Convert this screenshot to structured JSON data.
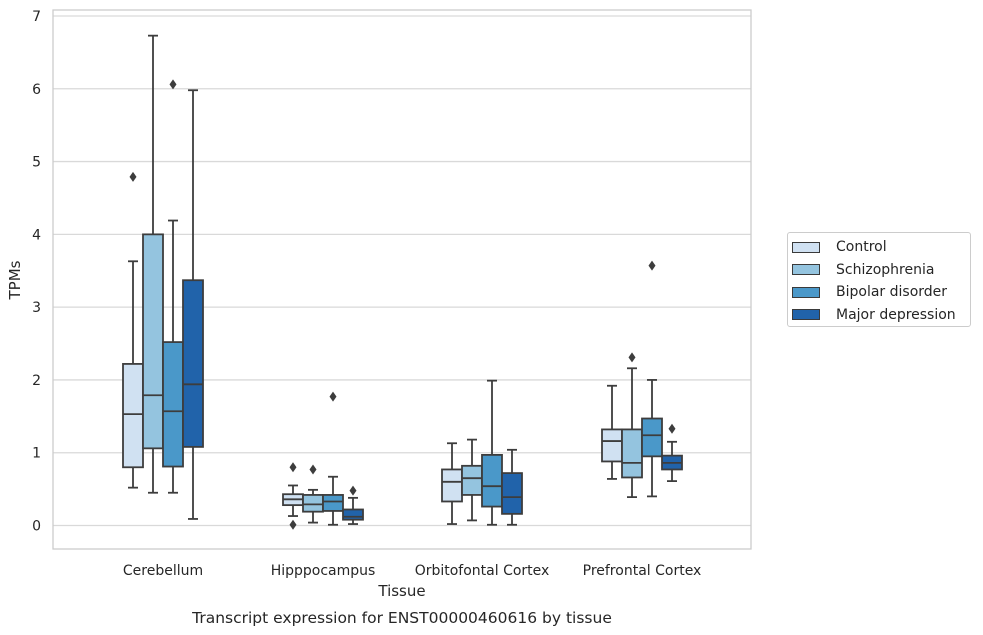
{
  "caption": "Transcript expression for ENST00000460616 by tissue",
  "chart_data": {
    "type": "box",
    "xlabel": "Tissue",
    "ylabel": "TPMs",
    "ylim": [
      -0.32,
      7.1
    ],
    "yticks": [
      "0",
      "1",
      "2",
      "3",
      "4",
      "5",
      "6",
      "7"
    ],
    "grid": true,
    "legend_position": "right",
    "categories": [
      "Cerebellum",
      "Hipppocampus",
      "Orbitofontal Cortex",
      "Prefrontal Cortex"
    ],
    "series": [
      {
        "name": "Control",
        "color": "#d0e1f2",
        "boxes": [
          {
            "whislo": 0.52,
            "q1": 0.8,
            "med": 1.53,
            "q3": 2.22,
            "whishi": 3.63,
            "fliers": [
              4.79
            ]
          },
          {
            "whislo": 0.13,
            "q1": 0.28,
            "med": 0.36,
            "q3": 0.43,
            "whishi": 0.55,
            "fliers": [
              0.8,
              0.01
            ]
          },
          {
            "whislo": 0.02,
            "q1": 0.33,
            "med": 0.6,
            "q3": 0.77,
            "whishi": 1.13,
            "fliers": []
          },
          {
            "whislo": 0.64,
            "q1": 0.88,
            "med": 1.16,
            "q3": 1.32,
            "whishi": 1.92,
            "fliers": []
          }
        ]
      },
      {
        "name": "Schizophrenia",
        "color": "#94c4df",
        "boxes": [
          {
            "whislo": 0.45,
            "q1": 1.06,
            "med": 1.79,
            "q3": 4.0,
            "whishi": 6.73,
            "fliers": []
          },
          {
            "whislo": 0.04,
            "q1": 0.19,
            "med": 0.29,
            "q3": 0.42,
            "whishi": 0.49,
            "fliers": [
              0.77
            ]
          },
          {
            "whislo": 0.07,
            "q1": 0.42,
            "med": 0.65,
            "q3": 0.82,
            "whishi": 1.18,
            "fliers": []
          },
          {
            "whislo": 0.39,
            "q1": 0.66,
            "med": 0.86,
            "q3": 1.32,
            "whishi": 2.16,
            "fliers": [
              2.31
            ]
          }
        ]
      },
      {
        "name": "Bipolar disorder",
        "color": "#4a98c9",
        "boxes": [
          {
            "whislo": 0.45,
            "q1": 0.81,
            "med": 1.57,
            "q3": 2.52,
            "whishi": 4.19,
            "fliers": [
              6.06
            ]
          },
          {
            "whislo": 0.01,
            "q1": 0.2,
            "med": 0.33,
            "q3": 0.42,
            "whishi": 0.67,
            "fliers": [
              1.77
            ]
          },
          {
            "whislo": 0.01,
            "q1": 0.26,
            "med": 0.54,
            "q3": 0.97,
            "whishi": 1.99,
            "fliers": []
          },
          {
            "whislo": 0.4,
            "q1": 0.95,
            "med": 1.24,
            "q3": 1.47,
            "whishi": 2.0,
            "fliers": [
              3.57
            ]
          }
        ]
      },
      {
        "name": "Major depression",
        "color": "#2163aa",
        "boxes": [
          {
            "whislo": 0.09,
            "q1": 1.08,
            "med": 1.94,
            "q3": 3.37,
            "whishi": 5.98,
            "fliers": []
          },
          {
            "whislo": 0.02,
            "q1": 0.08,
            "med": 0.12,
            "q3": 0.22,
            "whishi": 0.38,
            "fliers": [
              0.48
            ]
          },
          {
            "whislo": 0.01,
            "q1": 0.16,
            "med": 0.39,
            "q3": 0.72,
            "whishi": 1.04,
            "fliers": []
          },
          {
            "whislo": 0.61,
            "q1": 0.77,
            "med": 0.86,
            "q3": 0.96,
            "whishi": 1.15,
            "fliers": [
              1.33
            ]
          }
        ]
      }
    ]
  }
}
